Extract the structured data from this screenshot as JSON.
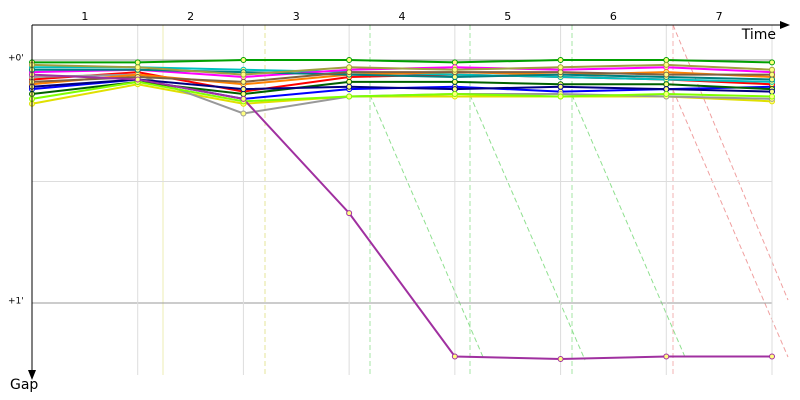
{
  "chart_data": {
    "type": "line",
    "x_label": "Time",
    "y_label": "Gap",
    "laps": [
      "1",
      "2",
      "3",
      "4",
      "5",
      "6",
      "7"
    ],
    "x": [
      0,
      1,
      2,
      3,
      4,
      5,
      6,
      7
    ],
    "xlim": [
      0,
      7
    ],
    "ylim": [
      -0.144,
      1.296
    ],
    "yticks": [
      {
        "value": 0,
        "label": "+0'"
      },
      {
        "value": 0.5,
        "label": null
      },
      {
        "value": 1,
        "label": "+1'"
      }
    ],
    "grid": true,
    "series": [
      {
        "color": "#00a000",
        "values": [
          0.01,
          0.01,
          0.0,
          0.0,
          0.01,
          0.0,
          0.0,
          0.01
        ]
      },
      {
        "color": "#0000ff",
        "values": [
          0.12,
          0.08,
          0.16,
          0.12,
          0.11,
          0.13,
          0.12,
          0.11
        ]
      },
      {
        "color": "#ff0000",
        "values": [
          0.08,
          0.05,
          0.13,
          0.07,
          0.06,
          0.07,
          0.08,
          0.1
        ]
      },
      {
        "color": "#e0e000",
        "values": [
          0.18,
          0.1,
          0.18,
          0.15,
          0.15,
          0.15,
          0.15,
          0.17
        ]
      },
      {
        "color": "#999999",
        "values": [
          0.07,
          0.06,
          0.22,
          0.15,
          0.14,
          0.14,
          0.15,
          0.16
        ]
      },
      {
        "color": "#00c0c0",
        "values": [
          0.03,
          0.03,
          0.04,
          0.05,
          0.06,
          0.07,
          0.08,
          0.09
        ]
      },
      {
        "color": "#ff00ff",
        "values": [
          0.05,
          0.04,
          0.07,
          0.04,
          0.03,
          0.04,
          0.03,
          0.05
        ]
      },
      {
        "color": "#ff8000",
        "values": [
          0.1,
          0.06,
          0.1,
          0.06,
          0.05,
          0.06,
          0.05,
          0.07
        ]
      },
      {
        "color": "#006000",
        "values": [
          0.14,
          0.09,
          0.14,
          0.09,
          0.09,
          0.1,
          0.1,
          0.12
        ]
      },
      {
        "color": "#000080",
        "values": [
          0.11,
          0.08,
          0.12,
          0.11,
          0.12,
          0.11,
          0.12,
          0.13
        ]
      },
      {
        "color": "#80ff00",
        "values": [
          0.16,
          0.09,
          0.17,
          0.15,
          0.14,
          0.15,
          0.14,
          0.15
        ]
      },
      {
        "color": "#008080",
        "values": [
          0.04,
          0.04,
          0.05,
          0.06,
          0.07,
          0.06,
          0.07,
          0.08
        ]
      },
      {
        "color": "#806040",
        "values": [
          0.09,
          0.07,
          0.09,
          0.05,
          0.05,
          0.05,
          0.06,
          0.06
        ]
      },
      {
        "color": "#a030a0",
        "values": [
          0.06,
          0.08,
          0.16,
          0.63,
          1.22,
          1.23,
          1.22,
          1.22
        ]
      },
      {
        "color": "#a0a040",
        "values": [
          0.02,
          0.03,
          0.06,
          0.03,
          0.04,
          0.03,
          0.02,
          0.04
        ]
      }
    ]
  }
}
